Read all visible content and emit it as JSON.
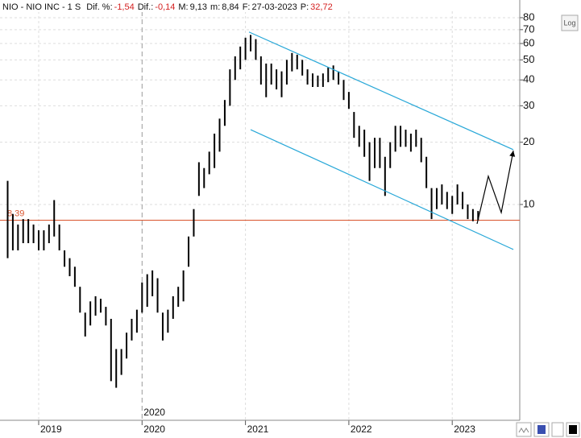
{
  "header": {
    "title": "NIO - NIO INC - 1 S",
    "fields": [
      {
        "label": "Dif. %:",
        "value": "-1,54"
      },
      {
        "label": "Dif.:",
        "value": "-0,14"
      },
      {
        "label": "M:",
        "value": "9,13"
      },
      {
        "label": "m:",
        "value": "8,84"
      },
      {
        "label": "F:",
        "value": "27-03-2023"
      },
      {
        "label": "P:",
        "value": "32,72"
      }
    ],
    "log_button": "Log"
  },
  "chart_data": {
    "type": "ohlc",
    "color": "#000000",
    "log_scale": true,
    "grid": true,
    "xlim": [
      2018.626,
      2023.653
    ],
    "xticks": [
      2019,
      2020,
      2021,
      2022,
      2023
    ],
    "ylim": [
      0.905,
      85.9
    ],
    "yticks": [
      10,
      20,
      30,
      40,
      50,
      60,
      70,
      80
    ],
    "x": [
      2018.7,
      2018.75,
      2018.8,
      2018.85,
      2018.9,
      2018.95,
      2019.0,
      2019.05,
      2019.1,
      2019.15,
      2019.2,
      2019.25,
      2019.3,
      2019.35,
      2019.4,
      2019.45,
      2019.5,
      2019.55,
      2019.6,
      2019.65,
      2019.7,
      2019.75,
      2019.8,
      2019.85,
      2019.9,
      2019.95,
      2020.0,
      2020.05,
      2020.1,
      2020.15,
      2020.2,
      2020.25,
      2020.3,
      2020.35,
      2020.4,
      2020.45,
      2020.5,
      2020.55,
      2020.6,
      2020.65,
      2020.7,
      2020.75,
      2020.8,
      2020.85,
      2020.9,
      2020.95,
      2021.0,
      2021.05,
      2021.1,
      2021.15,
      2021.2,
      2021.25,
      2021.3,
      2021.35,
      2021.4,
      2021.45,
      2021.5,
      2021.55,
      2021.6,
      2021.65,
      2021.7,
      2021.75,
      2021.8,
      2021.85,
      2021.9,
      2021.95,
      2022.0,
      2022.05,
      2022.1,
      2022.15,
      2022.2,
      2022.25,
      2022.3,
      2022.35,
      2022.4,
      2022.45,
      2022.5,
      2022.55,
      2022.6,
      2022.65,
      2022.7,
      2022.75,
      2022.8,
      2022.85,
      2022.9,
      2022.95,
      2023.0,
      2023.05,
      2023.1,
      2023.15,
      2023.2,
      2023.25
    ],
    "high": [
      13,
      9,
      8,
      8.5,
      8.5,
      8,
      7.5,
      7.5,
      8,
      10.5,
      8,
      6,
      5.5,
      5,
      4,
      3,
      3.4,
      3.6,
      3.5,
      3.2,
      2.8,
      2,
      2,
      2.4,
      2.8,
      3.1,
      4.2,
      4.6,
      4.8,
      4.4,
      3,
      3.1,
      3.6,
      4,
      4.8,
      7,
      9.5,
      16,
      15,
      18,
      22,
      26,
      32,
      45,
      52,
      58,
      64,
      66,
      63,
      52,
      48,
      48,
      45,
      44,
      50,
      54,
      53,
      50,
      45,
      43,
      42,
      43,
      46,
      47,
      44,
      40,
      35,
      28,
      24,
      23,
      20,
      21,
      21,
      17,
      20,
      24,
      24,
      23,
      22,
      23,
      21,
      17,
      12,
      12,
      12.5,
      11.5,
      11,
      12.5,
      11.5,
      10,
      9.5,
      9.3
    ],
    "low": [
      5.5,
      6,
      6,
      6.5,
      6.5,
      6.5,
      6,
      6,
      6.5,
      7,
      6,
      5,
      4.5,
      4,
      3,
      2.3,
      2.6,
      2.9,
      3,
      2.6,
      1.4,
      1.3,
      1.5,
      1.8,
      2.2,
      2.4,
      3,
      3.2,
      3.6,
      3,
      2.2,
      2.4,
      2.8,
      3.2,
      3.4,
      5,
      7,
      11,
      12,
      14,
      15,
      18,
      24,
      30,
      40,
      45,
      50,
      55,
      50,
      38,
      33,
      38,
      36,
      33,
      38,
      44,
      45,
      42,
      38,
      37,
      37,
      37,
      39,
      40,
      38,
      32,
      29,
      21,
      19,
      17,
      13,
      15,
      15,
      11,
      15,
      18,
      19,
      19,
      18,
      19,
      16,
      12,
      8.5,
      9.5,
      10,
      9.5,
      9,
      10,
      9.5,
      8.5,
      8.3,
      8.4
    ],
    "reference_line": {
      "value": 8.39,
      "label": "8,39",
      "color": "#d9532c"
    },
    "channel_color": "#29a8d8",
    "channel": [
      {
        "x": [
          2021.034,
          2023.591
        ],
        "y": [
          68.2,
          18.4
        ]
      },
      {
        "x": [
          2021.05,
          2023.591
        ],
        "y": [
          23.0,
          6.06
        ]
      }
    ],
    "projection": {
      "color": "#000000",
      "x": [
        2023.24,
        2023.349,
        2023.474,
        2023.591
      ],
      "y": [
        8.06,
        13.7,
        9.14,
        18.2
      ]
    }
  }
}
